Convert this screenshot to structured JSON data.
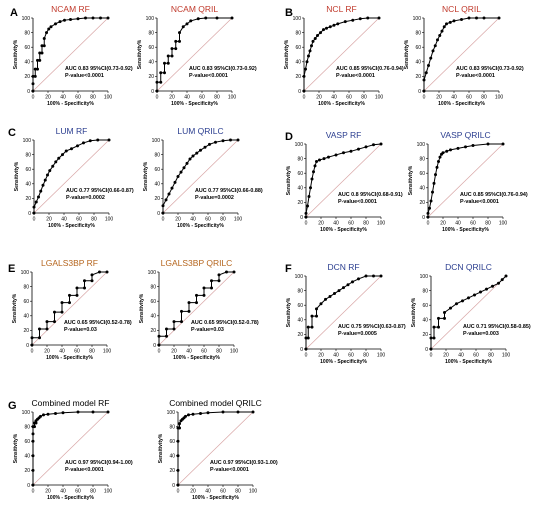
{
  "panels": [
    {
      "letter": "A",
      "title": "NCAM RF",
      "title_color": "#c0392b",
      "auc": "AUC 0.83 95%CI(0.73-0.92)",
      "pvalue": "P-value<0.0001"
    },
    {
      "letter": "",
      "title": "NCAM QRIL",
      "title_color": "#c0392b",
      "auc": "AUC 0.83 95%CI(0.73-0.92)",
      "pvalue": "P-value<0.0001"
    },
    {
      "letter": "B",
      "title": "NCL RF",
      "title_color": "#c0392b",
      "auc": "AUC 0.85 95%CI(0.76-0.94)",
      "pvalue": "P-value<0.0001"
    },
    {
      "letter": "",
      "title": "NCL QRIL",
      "title_color": "#c0392b",
      "auc": "AUC 0.83 95%CI(0.73-0.92)",
      "pvalue": "P-value<0.0001"
    },
    {
      "letter": "C",
      "title": "LUM RF",
      "title_color": "#2a3d8f",
      "auc": "AUC 0.77 95%CI(0.66-0.87)",
      "pvalue": "P-value=0.0002"
    },
    {
      "letter": "",
      "title": "LUM QRILC",
      "title_color": "#2a3d8f",
      "auc": "AUC 0.77 95%CI(0.66-0.88)",
      "pvalue": "P-value=0.0002"
    },
    {
      "letter": "D",
      "title": "VASP RF",
      "title_color": "#2a3d8f",
      "auc": "AUC 0.8 95%CI(0.68-0.91)",
      "pvalue": "P-value<0.0001"
    },
    {
      "letter": "",
      "title": "VASP QRILC",
      "title_color": "#2a3d8f",
      "auc": "AUC 0.85 95%CI(0.76-0.94)",
      "pvalue": "P-value<0.0001"
    },
    {
      "letter": "E",
      "title": "LGALS3BP RF",
      "title_color": "#b5651d",
      "auc": "AUC 0.65 95%CI(0.52-0.78)",
      "pvalue": "P-value=0.03"
    },
    {
      "letter": "",
      "title": "LGALS3BP QRILC",
      "title_color": "#b5651d",
      "auc": "AUC 0.65 95%CI(0.52-0.78)",
      "pvalue": "P-value=0.03"
    },
    {
      "letter": "F",
      "title": "DCN RF",
      "title_color": "#2a3d8f",
      "auc": "AUC 0.75 95%CI(0.63-0.87)",
      "pvalue": "P-value=0.0005"
    },
    {
      "letter": "",
      "title": "DCN QRILC",
      "title_color": "#2a3d8f",
      "auc": "AUC 0.71 95%CI(0.58-0.85)",
      "pvalue": "P-value=0.003"
    },
    {
      "letter": "G",
      "title": "Combined model RF",
      "title_color": "#000000",
      "auc": "AUC 0.97 95%CI(0.94-1.00)",
      "pvalue": "P-value<0.0001"
    },
    {
      "letter": "",
      "title": "Combined model QRILC",
      "title_color": "#000000",
      "auc": "AUC 0.97 95%CI(0.93-1.00)",
      "pvalue": "P-value<0.0001"
    }
  ],
  "chart_data": [
    {
      "type": "line",
      "title": "NCAM RF",
      "xlabel": "100% - Specificity%",
      "ylabel": "Sensitivity%",
      "xlim": [
        0,
        100
      ],
      "ylim": [
        0,
        100
      ],
      "x_ticks": [
        0,
        20,
        40,
        60,
        80,
        100
      ],
      "y_ticks": [
        0,
        20,
        40,
        60,
        80,
        100
      ],
      "series": [
        {
          "x": [
            0,
            0,
            0,
            3,
            3,
            6,
            6,
            9,
            9,
            12,
            12,
            15,
            15,
            18,
            21,
            24,
            30,
            36,
            42,
            50,
            60,
            70,
            80,
            90,
            100
          ],
          "y": [
            0,
            10,
            20,
            20,
            30,
            30,
            42,
            42,
            52,
            52,
            62,
            62,
            72,
            80,
            85,
            88,
            92,
            95,
            97,
            98,
            99,
            100,
            100,
            100,
            100
          ]
        }
      ]
    },
    {
      "type": "line",
      "title": "NCAM QRIL",
      "xlabel": "100% - Specificity%",
      "ylabel": "Sensitivity%",
      "xlim": [
        0,
        100
      ],
      "ylim": [
        0,
        100
      ],
      "x_ticks": [
        0,
        20,
        40,
        60,
        80,
        100
      ],
      "y_ticks": [
        0,
        20,
        40,
        60,
        80,
        100
      ],
      "series": [
        {
          "x": [
            0,
            0,
            5,
            5,
            10,
            10,
            15,
            15,
            20,
            20,
            25,
            25,
            30,
            30,
            35,
            40,
            45,
            55,
            65,
            80,
            100
          ],
          "y": [
            0,
            12,
            12,
            25,
            25,
            38,
            38,
            48,
            48,
            58,
            58,
            68,
            68,
            80,
            88,
            92,
            96,
            99,
            100,
            100,
            100
          ]
        }
      ]
    },
    {
      "type": "line",
      "title": "NCL RF",
      "xlabel": "100% - Specificity%",
      "ylabel": "Sensitivity%",
      "xlim": [
        0,
        100
      ],
      "ylim": [
        0,
        100
      ],
      "x_ticks": [
        0,
        20,
        40,
        60,
        80,
        100
      ],
      "y_ticks": [
        0,
        20,
        40,
        60,
        80,
        100
      ],
      "series": [
        {
          "x": [
            0,
            0,
            2,
            4,
            6,
            8,
            10,
            12,
            15,
            18,
            22,
            26,
            30,
            35,
            40,
            45,
            55,
            65,
            75,
            85,
            100
          ],
          "y": [
            0,
            20,
            30,
            40,
            48,
            55,
            62,
            68,
            72,
            76,
            80,
            84,
            86,
            88,
            90,
            92,
            95,
            97,
            99,
            100,
            100
          ]
        }
      ]
    },
    {
      "type": "line",
      "title": "NCL QRIL",
      "xlabel": "100% - Specificity%",
      "ylabel": "Sensitivity%",
      "xlim": [
        0,
        100
      ],
      "ylim": [
        0,
        100
      ],
      "x_ticks": [
        0,
        20,
        40,
        60,
        80,
        100
      ],
      "y_ticks": [
        0,
        20,
        40,
        60,
        80,
        100
      ],
      "series": [
        {
          "x": [
            0,
            0,
            3,
            6,
            9,
            12,
            15,
            18,
            21,
            24,
            27,
            30,
            35,
            40,
            50,
            60,
            70,
            80,
            100
          ],
          "y": [
            0,
            15,
            25,
            35,
            45,
            55,
            62,
            70,
            76,
            82,
            88,
            92,
            94,
            96,
            98,
            100,
            100,
            100,
            100
          ]
        }
      ]
    },
    {
      "type": "line",
      "title": "LUM RF",
      "xlabel": "100% - Specificity%",
      "ylabel": "Sensitivity%",
      "xlim": [
        0,
        100
      ],
      "ylim": [
        0,
        100
      ],
      "x_ticks": [
        0,
        20,
        40,
        60,
        80,
        100
      ],
      "y_ticks": [
        0,
        20,
        40,
        60,
        80,
        100
      ],
      "series": [
        {
          "x": [
            0,
            0,
            3,
            6,
            9,
            12,
            15,
            18,
            21,
            25,
            29,
            33,
            38,
            43,
            50,
            58,
            66,
            75,
            85,
            100
          ],
          "y": [
            0,
            8,
            15,
            22,
            30,
            38,
            45,
            52,
            58,
            64,
            70,
            75,
            80,
            85,
            88,
            92,
            96,
            99,
            100,
            100
          ]
        }
      ]
    },
    {
      "type": "line",
      "title": "LUM QRILC",
      "xlabel": "100% - Specificity%",
      "ylabel": "Sensitivity%",
      "xlim": [
        0,
        100
      ],
      "ylim": [
        0,
        100
      ],
      "x_ticks": [
        0,
        20,
        40,
        60,
        80,
        100
      ],
      "y_ticks": [
        0,
        20,
        40,
        60,
        80,
        100
      ],
      "series": [
        {
          "x": [
            0,
            0,
            4,
            8,
            12,
            16,
            20,
            24,
            28,
            32,
            36,
            40,
            45,
            50,
            56,
            62,
            70,
            80,
            90,
            100
          ],
          "y": [
            0,
            10,
            18,
            26,
            34,
            42,
            50,
            56,
            62,
            68,
            74,
            78,
            82,
            86,
            90,
            94,
            97,
            99,
            100,
            100
          ]
        }
      ]
    },
    {
      "type": "line",
      "title": "VASP RF",
      "xlabel": "100% - Specificity%",
      "ylabel": "Sensitivity%",
      "xlim": [
        0,
        100
      ],
      "ylim": [
        0,
        100
      ],
      "x_ticks": [
        0,
        20,
        40,
        60,
        80,
        100
      ],
      "y_ticks": [
        0,
        20,
        40,
        60,
        80,
        100
      ],
      "series": [
        {
          "x": [
            0,
            0,
            2,
            4,
            6,
            8,
            10,
            12,
            14,
            18,
            24,
            30,
            40,
            50,
            60,
            70,
            80,
            90,
            100
          ],
          "y": [
            0,
            5,
            15,
            28,
            40,
            52,
            62,
            70,
            76,
            78,
            80,
            82,
            85,
            88,
            90,
            93,
            96,
            99,
            100
          ]
        }
      ]
    },
    {
      "type": "line",
      "title": "VASP QRILC",
      "xlabel": "100% - Specificity%",
      "ylabel": "Sensitivity%",
      "xlim": [
        0,
        100
      ],
      "ylim": [
        0,
        100
      ],
      "x_ticks": [
        0,
        20,
        40,
        60,
        80,
        100
      ],
      "y_ticks": [
        0,
        20,
        40,
        60,
        80,
        100
      ],
      "series": [
        {
          "x": [
            0,
            0,
            2,
            4,
            6,
            8,
            10,
            12,
            14,
            16,
            18,
            20,
            25,
            30,
            40,
            50,
            60,
            80,
            100
          ],
          "y": [
            0,
            5,
            12,
            22,
            34,
            46,
            58,
            68,
            76,
            82,
            86,
            88,
            90,
            92,
            94,
            96,
            98,
            100,
            100
          ]
        }
      ]
    },
    {
      "type": "line",
      "title": "LGALS3BP RF",
      "xlabel": "100% - Specificity%",
      "ylabel": "Sensitivity%",
      "xlim": [
        0,
        100
      ],
      "ylim": [
        0,
        100
      ],
      "x_ticks": [
        0,
        20,
        40,
        60,
        80,
        100
      ],
      "y_ticks": [
        0,
        20,
        40,
        60,
        80,
        100
      ],
      "series": [
        {
          "x": [
            0,
            0,
            10,
            10,
            20,
            20,
            30,
            30,
            40,
            40,
            50,
            50,
            60,
            60,
            70,
            70,
            80,
            80,
            90,
            100
          ],
          "y": [
            0,
            10,
            10,
            22,
            22,
            32,
            32,
            45,
            45,
            58,
            58,
            68,
            68,
            78,
            78,
            88,
            88,
            96,
            100,
            100
          ]
        }
      ]
    },
    {
      "type": "line",
      "title": "LGALS3BP QRILC",
      "xlabel": "100% - Specificity%",
      "ylabel": "Sensitivity%",
      "xlim": [
        0,
        100
      ],
      "ylim": [
        0,
        100
      ],
      "x_ticks": [
        0,
        20,
        40,
        60,
        80,
        100
      ],
      "y_ticks": [
        0,
        20,
        40,
        60,
        80,
        100
      ],
      "series": [
        {
          "x": [
            0,
            0,
            10,
            10,
            20,
            20,
            30,
            30,
            40,
            40,
            50,
            50,
            60,
            60,
            70,
            70,
            80,
            80,
            90,
            100
          ],
          "y": [
            0,
            12,
            12,
            22,
            22,
            32,
            32,
            46,
            46,
            58,
            58,
            68,
            68,
            78,
            78,
            88,
            88,
            96,
            100,
            100
          ]
        }
      ]
    },
    {
      "type": "line",
      "title": "DCN RF",
      "xlabel": "100% - Specificity%",
      "ylabel": "Sensitivity%",
      "xlim": [
        0,
        100
      ],
      "ylim": [
        0,
        100
      ],
      "x_ticks": [
        0,
        20,
        40,
        60,
        80,
        100
      ],
      "y_ticks": [
        0,
        20,
        40,
        60,
        80,
        100
      ],
      "series": [
        {
          "x": [
            0,
            0,
            3,
            3,
            8,
            8,
            14,
            14,
            20,
            26,
            32,
            38,
            44,
            50,
            56,
            62,
            70,
            80,
            90,
            100
          ],
          "y": [
            0,
            15,
            15,
            30,
            30,
            45,
            45,
            55,
            62,
            68,
            72,
            76,
            80,
            84,
            88,
            92,
            96,
            100,
            100,
            100
          ]
        }
      ]
    },
    {
      "type": "line",
      "title": "DCN QRILC",
      "xlabel": "100% - Specificity%",
      "ylabel": "Sensitivity%",
      "xlim": [
        0,
        100
      ],
      "ylim": [
        0,
        100
      ],
      "x_ticks": [
        0,
        20,
        40,
        60,
        80,
        100
      ],
      "y_ticks": [
        0,
        20,
        40,
        60,
        80,
        100
      ],
      "series": [
        {
          "x": [
            0,
            0,
            4,
            4,
            10,
            10,
            18,
            18,
            26,
            34,
            42,
            50,
            58,
            66,
            74,
            82,
            90,
            95,
            100
          ],
          "y": [
            0,
            15,
            15,
            30,
            30,
            42,
            42,
            50,
            56,
            62,
            66,
            70,
            74,
            78,
            82,
            86,
            90,
            95,
            100
          ]
        }
      ]
    },
    {
      "type": "line",
      "title": "Combined model RF",
      "xlabel": "100% - Specificity%",
      "ylabel": "Sensitivity%",
      "xlim": [
        0,
        100
      ],
      "ylim": [
        0,
        100
      ],
      "x_ticks": [
        0,
        20,
        40,
        60,
        80,
        100
      ],
      "y_ticks": [
        0,
        20,
        40,
        60,
        80,
        100
      ],
      "series": [
        {
          "x": [
            0,
            0,
            0,
            0,
            0,
            0,
            2,
            2,
            4,
            4,
            6,
            8,
            10,
            14,
            20,
            30,
            40,
            60,
            80,
            100
          ],
          "y": [
            0,
            20,
            40,
            60,
            70,
            80,
            80,
            85,
            85,
            88,
            90,
            92,
            94,
            96,
            97,
            98,
            99,
            100,
            100,
            100
          ]
        }
      ]
    },
    {
      "type": "line",
      "title": "Combined model QRILC",
      "xlabel": "100% - Specificity%",
      "ylabel": "Sensitivity%",
      "xlim": [
        0,
        100
      ],
      "ylim": [
        0,
        100
      ],
      "x_ticks": [
        0,
        20,
        40,
        60,
        80,
        100
      ],
      "y_ticks": [
        0,
        20,
        40,
        60,
        80,
        100
      ],
      "series": [
        {
          "x": [
            0,
            0,
            0,
            0,
            0,
            2,
            2,
            4,
            6,
            8,
            10,
            14,
            20,
            30,
            40,
            60,
            80,
            100
          ],
          "y": [
            0,
            20,
            40,
            60,
            78,
            78,
            84,
            88,
            90,
            92,
            94,
            96,
            97,
            98,
            99,
            100,
            100,
            100
          ]
        }
      ]
    }
  ]
}
